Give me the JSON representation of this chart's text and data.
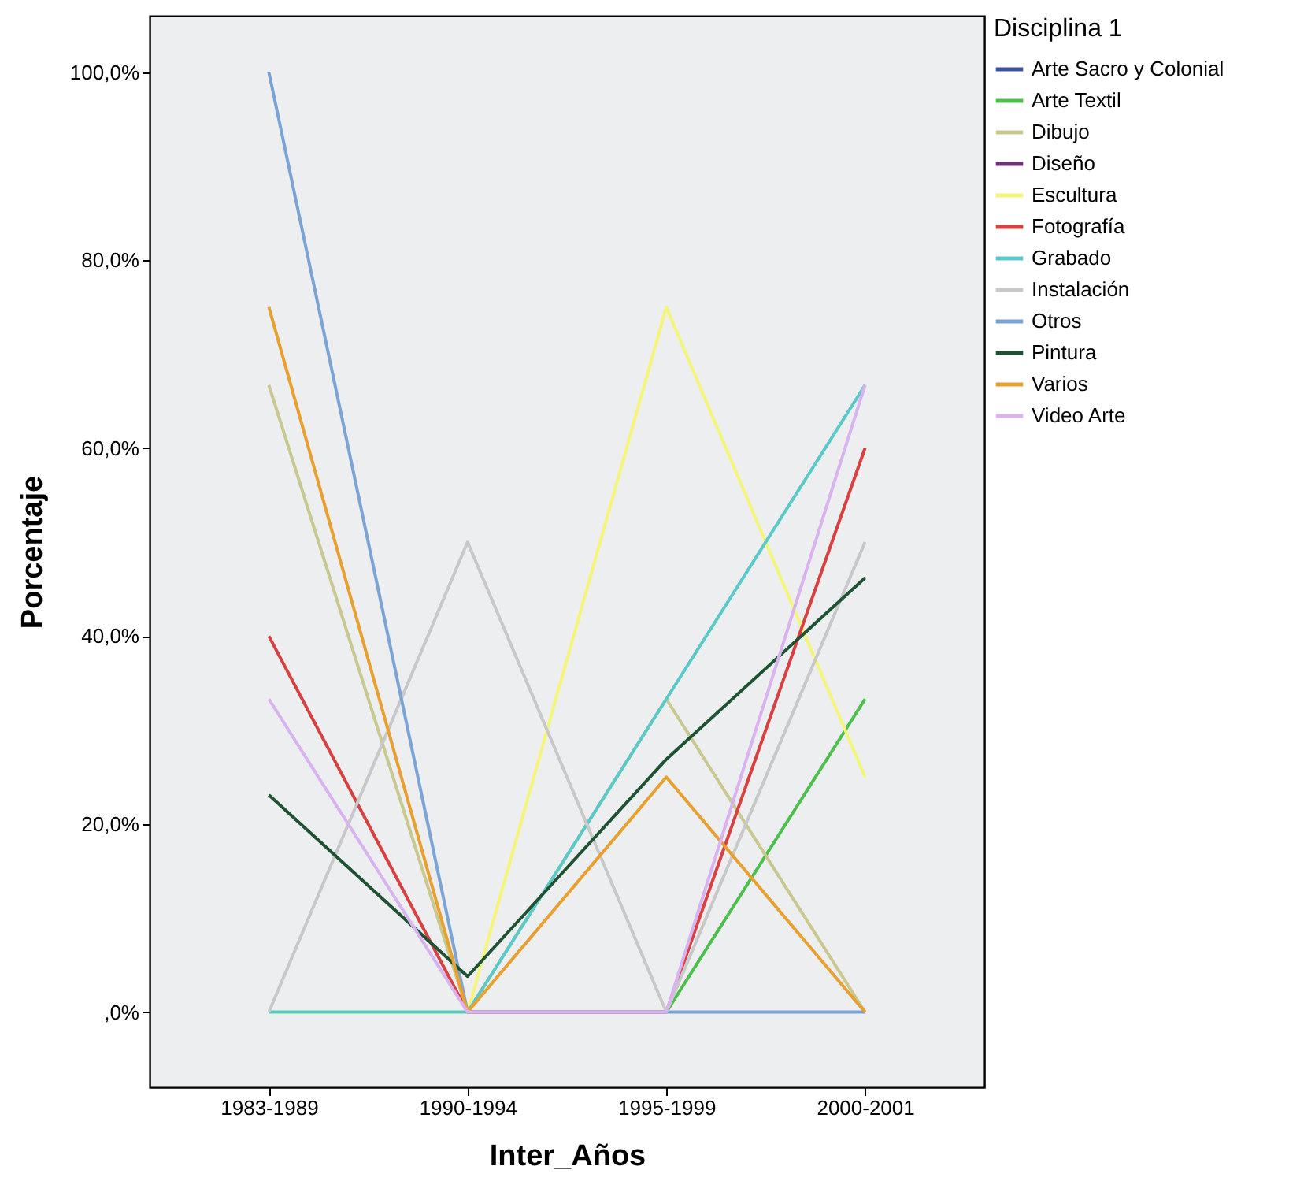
{
  "chart_data": {
    "type": "line",
    "xlabel": "Inter_Años",
    "ylabel": "Porcentaje",
    "legend_title": "Disciplina 1",
    "legend": "top right",
    "grid": false,
    "marker": "none",
    "line_style": "solid",
    "categories": [
      "1983-1989",
      "1990-1994",
      "1995-1999",
      "2000-2001"
    ],
    "ylim": [
      -8,
      106
    ],
    "yticks": [
      {
        "value": 0,
        "label": ",0%"
      },
      {
        "value": 20,
        "label": "20,0%"
      },
      {
        "value": 40,
        "label": "40,0%"
      },
      {
        "value": 60,
        "label": "60,0%"
      },
      {
        "value": 80,
        "label": "80,0%"
      },
      {
        "value": 100,
        "label": "100,0%"
      }
    ],
    "series": [
      {
        "name": "Arte Sacro y Colonial",
        "color": "#3a53a4",
        "values": [
          null,
          null,
          null,
          null
        ]
      },
      {
        "name": "Arte Textil",
        "color": "#4cbf4c",
        "values": [
          null,
          0,
          0,
          33.3
        ]
      },
      {
        "name": "Dibujo",
        "color": "#c9c98f",
        "values": [
          66.7,
          0,
          33.3,
          0
        ]
      },
      {
        "name": "Diseño",
        "color": "#70307f",
        "values": [
          null,
          null,
          null,
          null
        ]
      },
      {
        "name": "Escultura",
        "color": "#f5f57a",
        "values": [
          0,
          0,
          75,
          25
        ]
      },
      {
        "name": "Fotografía",
        "color": "#d94040",
        "values": [
          40,
          0,
          0,
          60
        ]
      },
      {
        "name": "Grabado",
        "color": "#5cc9c9",
        "values": [
          0,
          0,
          33.3,
          66.7
        ]
      },
      {
        "name": "Instalación",
        "color": "#c8c8c8",
        "values": [
          0,
          50,
          0,
          50
        ]
      },
      {
        "name": "Otros",
        "color": "#7ba3d4",
        "values": [
          100,
          0,
          0,
          0
        ]
      },
      {
        "name": "Pintura",
        "color": "#1e5233",
        "values": [
          23.1,
          3.8,
          26.9,
          46.2
        ]
      },
      {
        "name": "Varios",
        "color": "#e8a030",
        "values": [
          75,
          0,
          25,
          0
        ]
      },
      {
        "name": "Video Arte",
        "color": "#d9b3ef",
        "values": [
          33.3,
          0,
          0,
          66.7
        ]
      }
    ]
  }
}
